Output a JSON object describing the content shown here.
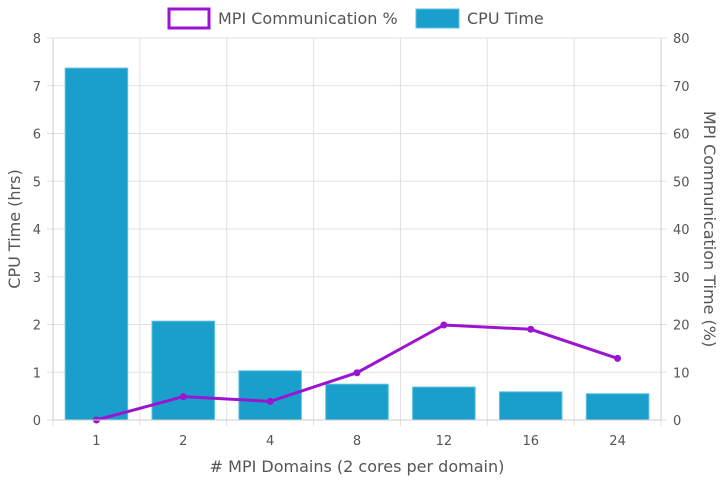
{
  "chart_data": {
    "type": "bar+line",
    "categories": [
      "1",
      "2",
      "4",
      "8",
      "12",
      "16",
      "24"
    ],
    "xlabel": "# MPI Domains (2 cores per domain)",
    "series": [
      {
        "name": "CPU Time",
        "type": "bar",
        "axis": "left",
        "color": "#1a9fcc",
        "values": [
          7.37,
          2.07,
          1.03,
          0.75,
          0.69,
          0.59,
          0.55
        ]
      },
      {
        "name": "MPI Communication %",
        "type": "line",
        "axis": "right",
        "color": "#9b14d0",
        "values": [
          0,
          4.9,
          3.9,
          9.9,
          19.9,
          19.0,
          12.9
        ]
      }
    ],
    "y_left": {
      "label": "CPU Time (hrs)",
      "range": [
        0,
        8
      ],
      "ticks": [
        "0",
        "1",
        "2",
        "3",
        "4",
        "5",
        "6",
        "7",
        "8"
      ]
    },
    "y_right": {
      "label": "MPI Communication Time (%)",
      "range": [
        0,
        80
      ],
      "ticks": [
        "0",
        "10",
        "20",
        "30",
        "40",
        "50",
        "60",
        "70",
        "80"
      ]
    },
    "legend": {
      "position": "top",
      "items": [
        "MPI Communication %",
        "CPU Time"
      ]
    },
    "grid": true
  }
}
